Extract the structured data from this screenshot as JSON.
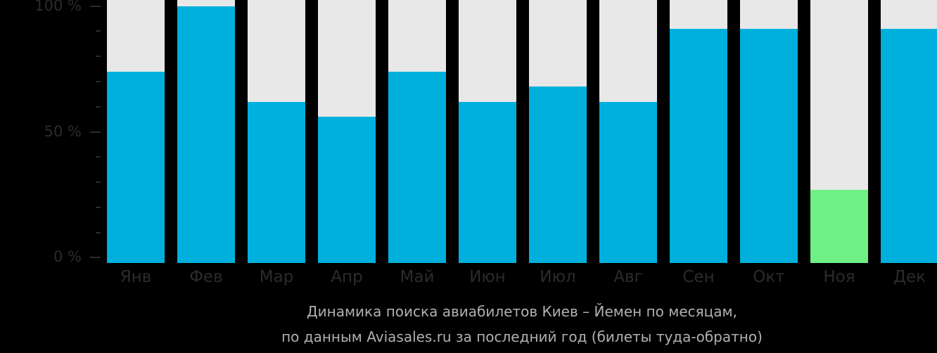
{
  "chart_data": {
    "type": "bar",
    "stacked_percent": true,
    "title": "Динамика поиска авиабилетов Киев – Йемен по месяцам,",
    "subtitle": "по данным Aviasales.ru за последний год (билеты туда-обратно)",
    "xlabel": "",
    "ylabel": "",
    "ylim": [
      0,
      100
    ],
    "yticks": [
      "0 %",
      "50 %",
      "100 %"
    ],
    "categories": [
      "Янв",
      "Фев",
      "Мар",
      "Апр",
      "Май",
      "Июн",
      "Июл",
      "Авг",
      "Сен",
      "Окт",
      "Ноя",
      "Дек"
    ],
    "values": [
      74,
      100,
      62,
      56,
      74,
      62,
      68,
      62,
      91,
      91,
      27,
      91
    ],
    "highlight_index": 10,
    "colors": {
      "bar": "#00b0dc",
      "highlight": "#6ef086",
      "background_bar": "#e8e8e8",
      "page": "#000000",
      "axis_text": "#2b2b2b",
      "caption_text": "#b0b0b0"
    },
    "grid": false,
    "legend": null
  },
  "axis": {
    "y_labels": [
      "100 %",
      "50 %",
      "0 %"
    ]
  },
  "months": [
    {
      "label": "Янв"
    },
    {
      "label": "Фев"
    },
    {
      "label": "Мар"
    },
    {
      "label": "Апр"
    },
    {
      "label": "Май"
    },
    {
      "label": "Июн"
    },
    {
      "label": "Июл"
    },
    {
      "label": "Авг"
    },
    {
      "label": "Сен"
    },
    {
      "label": "Окт"
    },
    {
      "label": "Ноя"
    },
    {
      "label": "Дек"
    }
  ],
  "caption": {
    "line1": "Динамика поиска авиабилетов Киев – Йемен по месяцам,",
    "line2": "по данным Aviasales.ru за последний год (билеты туда-обратно)"
  }
}
